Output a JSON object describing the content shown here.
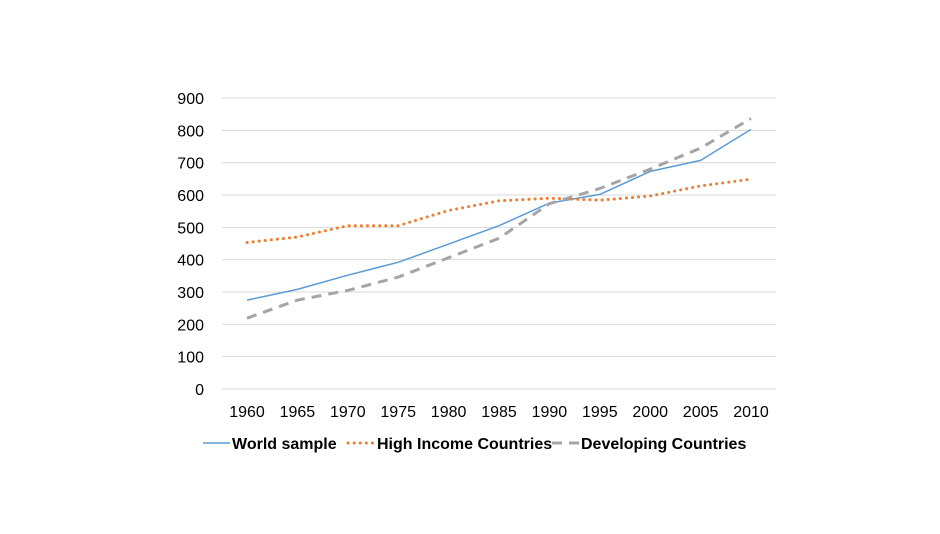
{
  "chart_data": {
    "type": "line",
    "title": "",
    "xlabel": "",
    "ylabel": "",
    "categories": [
      "1960",
      "1965",
      "1970",
      "1975",
      "1980",
      "1985",
      "1990",
      "1995",
      "2000",
      "2005",
      "2010"
    ],
    "y_ticks": [
      "0",
      "100",
      "200",
      "300",
      "400",
      "500",
      "600",
      "700",
      "800",
      "900"
    ],
    "ylim": [
      0,
      900
    ],
    "grid": "horizontal",
    "legend_position": "bottom",
    "series": [
      {
        "name": "World sample",
        "values": [
          275,
          308,
          352,
          392,
          448,
          505,
          575,
          602,
          673,
          707,
          803
        ],
        "color": "#5b9bd5",
        "line_style": "solid"
      },
      {
        "name": "High Income Countries",
        "values": [
          453,
          470,
          505,
          505,
          552,
          582,
          590,
          584,
          597,
          628,
          649
        ],
        "color": "#ed7d31",
        "line_style": "dotted"
      },
      {
        "name": "Developing Countries",
        "values": [
          219,
          275,
          305,
          346,
          406,
          466,
          573,
          620,
          680,
          745,
          837
        ],
        "color": "#a5a5a5",
        "line_style": "dashed"
      }
    ]
  }
}
